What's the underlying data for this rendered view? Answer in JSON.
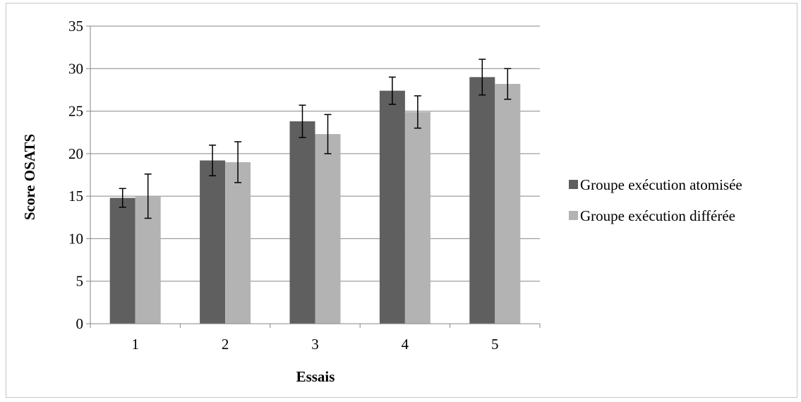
{
  "chart_data": {
    "type": "bar",
    "title": "",
    "xlabel": "Essais",
    "ylabel": "Score OSATS",
    "categories": [
      "1",
      "2",
      "3",
      "4",
      "5"
    ],
    "ylim": [
      0,
      35
    ],
    "yticks": [
      "0",
      "5",
      "10",
      "15",
      "20",
      "25",
      "30",
      "35"
    ],
    "grid": true,
    "legend_position": "right",
    "series": [
      {
        "name": "Groupe exécution atomisée",
        "color": "#5f5f5f",
        "values": [
          14.8,
          19.2,
          23.8,
          27.4,
          29.0
        ],
        "error": [
          1.1,
          1.8,
          1.9,
          1.6,
          2.1
        ]
      },
      {
        "name": "Groupe exécution différée",
        "color": "#b3b3b3",
        "values": [
          15.0,
          19.0,
          22.3,
          24.9,
          28.2
        ],
        "error": [
          2.6,
          2.4,
          2.3,
          1.9,
          1.8
        ]
      }
    ]
  }
}
